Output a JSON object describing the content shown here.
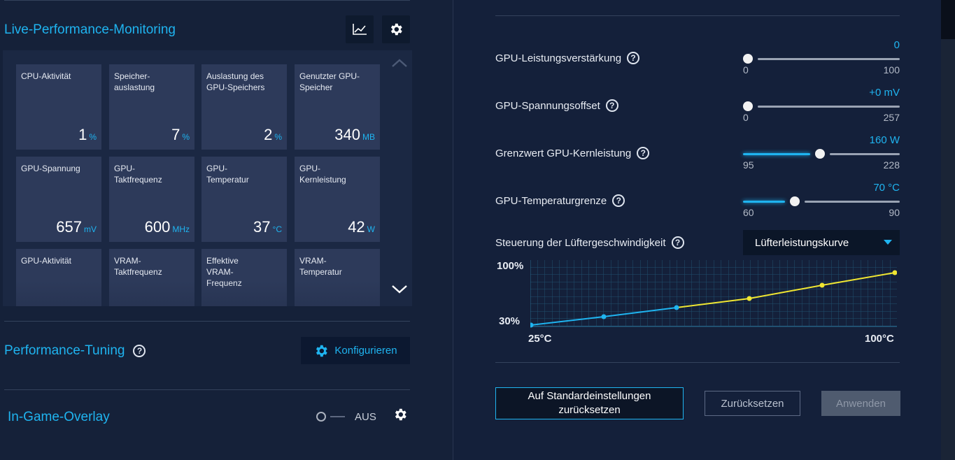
{
  "monitoring": {
    "title": "Live-Performance-Monitoring",
    "tiles": [
      {
        "label": "CPU-Aktivität",
        "value": "1",
        "unit": "%"
      },
      {
        "label": "Speicher-\nauslastung",
        "value": "7",
        "unit": "%"
      },
      {
        "label": "Auslastung des GPU-Speichers",
        "value": "2",
        "unit": "%"
      },
      {
        "label": "Genutzter GPU-Speicher",
        "value": "340",
        "unit": "MB"
      },
      {
        "label": "GPU-Spannung",
        "value": "657",
        "unit": "mV"
      },
      {
        "label": "GPU-\nTaktfrequenz",
        "value": "600",
        "unit": "MHz"
      },
      {
        "label": "GPU-\nTemperatur",
        "value": "37",
        "unit": "°C"
      },
      {
        "label": "GPU-\nKernleistung",
        "value": "42",
        "unit": "W"
      },
      {
        "label": "GPU-Aktivität",
        "value": "",
        "unit": ""
      },
      {
        "label": "VRAM-\nTaktfrequenz",
        "value": "",
        "unit": ""
      },
      {
        "label": "Effektive\nVRAM-\nFrequenz",
        "value": "",
        "unit": ""
      },
      {
        "label": "VRAM-\nTemperatur",
        "value": "",
        "unit": ""
      }
    ]
  },
  "tuning": {
    "title": "Performance-Tuning",
    "configure_label": "Konfigurieren"
  },
  "overlay": {
    "title": "In-Game-Overlay",
    "toggle_state": "AUS"
  },
  "settings": [
    {
      "label": "GPU-Leistungsverstärkung",
      "value": "0",
      "min": "0",
      "max": "100",
      "fraction": 0.0
    },
    {
      "label": "GPU-Spannungsoffset",
      "value": "+0 mV",
      "min": "0",
      "max": "257",
      "fraction": 0.0
    },
    {
      "label": "Grenzwert GPU-Kernleistung",
      "value": "160 W",
      "min": "95",
      "max": "228",
      "fraction": 0.49
    },
    {
      "label": "GPU-Temperaturgrenze",
      "value": "70 °C",
      "min": "60",
      "max": "90",
      "fraction": 0.33
    }
  ],
  "fan": {
    "label": "Steuerung der Lüftergeschwindigkeit",
    "mode": "Lüfterleistungskurve",
    "y_top": "100%",
    "y_bottom": "30%",
    "x_left": "25°C",
    "x_right": "100°C"
  },
  "buttons": {
    "reset_defaults": "Auf Standardeinstellungen zurücksetzen",
    "reset": "Zurücksetzen",
    "apply": "Anwenden"
  },
  "colors": {
    "accent": "#1fb4f0",
    "curve_hot": "#f0e632",
    "panel": "#152139",
    "tile": "#2d3a5a"
  }
}
